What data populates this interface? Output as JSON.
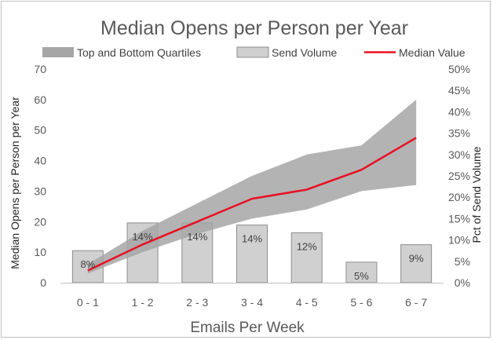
{
  "chart_data": {
    "type": "bar+line+band",
    "title": "Median Opens per Person per Year",
    "xlabel": "Emails Per Week",
    "ylabel": "Median Opens per Person per Year",
    "y2label": "Pct of Send Volume",
    "categories": [
      "0 - 1",
      "1 - 2",
      "2 - 3",
      "3 - 4",
      "4 - 5",
      "5 - 6",
      "6 - 7"
    ],
    "ylim": [
      0,
      70
    ],
    "yticks": [
      "0",
      "10",
      "20",
      "30",
      "40",
      "50",
      "60",
      "70"
    ],
    "y2lim": [
      0,
      50
    ],
    "y2ticks": [
      "0%",
      "5%",
      "10%",
      "15%",
      "20%",
      "25%",
      "30%",
      "35%",
      "40%",
      "45%",
      "50%"
    ],
    "legend_position": "top",
    "legend": [
      "Top and Bottom Quartiles",
      "Send Volume",
      "Median Value"
    ],
    "series": [
      {
        "name": "Send Volume",
        "kind": "bar",
        "axis": "right",
        "values": [
          7.5,
          14,
          14,
          13.5,
          11.7,
          4.8,
          8.9
        ],
        "labels": [
          "8%",
          "14%",
          "14%",
          "14%",
          "12%",
          "5%",
          "9%"
        ]
      },
      {
        "name": "Top and Bottom Quartiles",
        "kind": "band",
        "axis": "left",
        "upper": [
          6,
          17,
          26,
          35,
          42,
          45,
          60
        ],
        "lower": [
          3,
          10,
          16,
          21,
          24,
          30,
          32
        ]
      },
      {
        "name": "Median Value",
        "kind": "line",
        "axis": "left",
        "values": [
          4,
          12.5,
          20,
          27.5,
          30.5,
          37,
          47.5
        ]
      }
    ],
    "colors": {
      "band": "#a6a6a6",
      "bar_fill": "#d0d0d0",
      "bar_stroke": "#8c8c8c",
      "line": "#e81123"
    },
    "grid": false
  }
}
